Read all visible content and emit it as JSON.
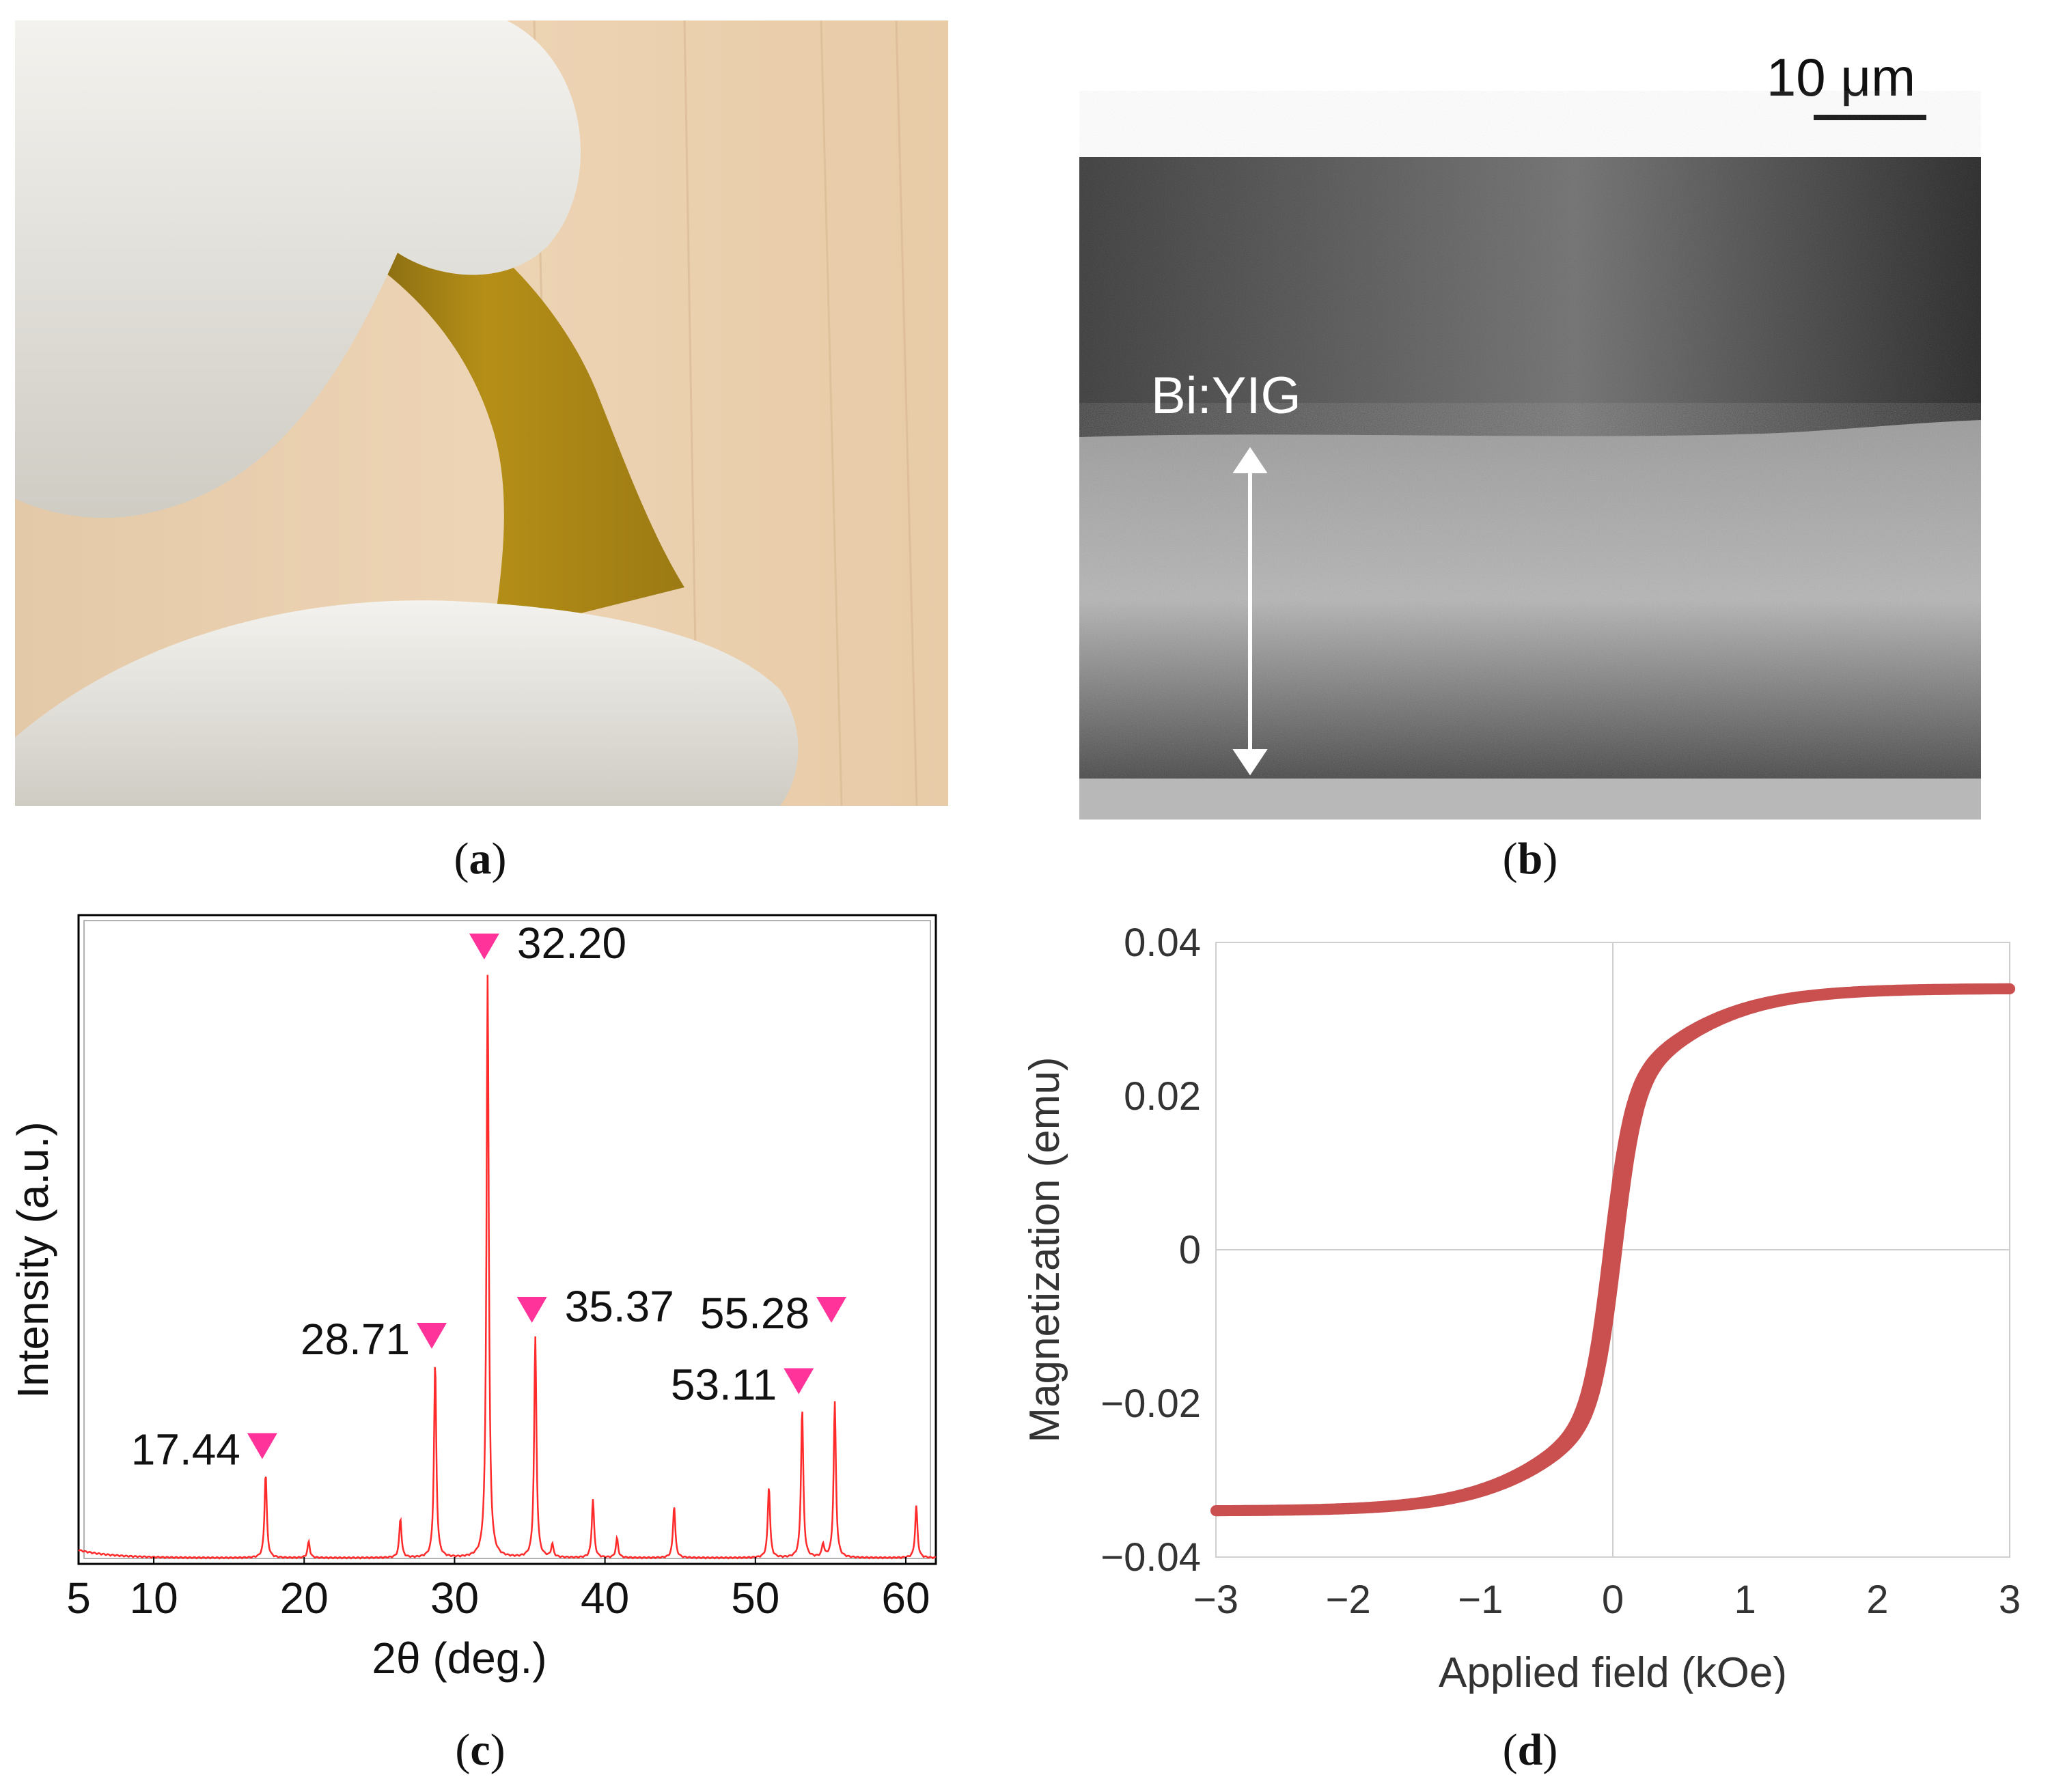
{
  "panels": {
    "a": {
      "label": "a"
    },
    "b": {
      "label": "b",
      "overlay_label": "Bi:YIG",
      "scale_bar": "10 μm"
    },
    "c": {
      "label": "c"
    },
    "d": {
      "label": "d"
    }
  },
  "colors": {
    "xrd": "#ff2a2a",
    "marker": "#ff3399",
    "hysteresis": "#c9504f"
  },
  "chart_data": [
    {
      "id": "xrd",
      "type": "line",
      "xlabel": "2θ  (deg.)",
      "ylabel": "Intensity  (a.u.)",
      "xlim": [
        5,
        62
      ],
      "ylim": [
        0,
        1.0
      ],
      "xticks": [
        5,
        10,
        20,
        30,
        40,
        50,
        60
      ],
      "peaks": [
        {
          "x": 17.44,
          "y": 0.13
        },
        {
          "x": 20.3,
          "y": 0.025
        },
        {
          "x": 26.4,
          "y": 0.06
        },
        {
          "x": 28.71,
          "y": 0.3
        },
        {
          "x": 32.2,
          "y": 0.9
        },
        {
          "x": 35.37,
          "y": 0.34
        },
        {
          "x": 36.5,
          "y": 0.02
        },
        {
          "x": 39.2,
          "y": 0.09
        },
        {
          "x": 40.8,
          "y": 0.03
        },
        {
          "x": 44.6,
          "y": 0.08
        },
        {
          "x": 50.9,
          "y": 0.11
        },
        {
          "x": 53.11,
          "y": 0.23
        },
        {
          "x": 54.5,
          "y": 0.02
        },
        {
          "x": 55.28,
          "y": 0.24
        },
        {
          "x": 60.7,
          "y": 0.08
        }
      ],
      "annotations": [
        {
          "text": "17.44",
          "x": 17.44,
          "y": 0.13,
          "side": "left"
        },
        {
          "text": "28.71",
          "x": 28.71,
          "y": 0.3,
          "side": "left"
        },
        {
          "text": "32.20",
          "x": 32.2,
          "y": 0.9,
          "side": "right"
        },
        {
          "text": "35.37",
          "x": 35.37,
          "y": 0.34,
          "side": "right"
        },
        {
          "text": "53.11",
          "x": 53.11,
          "y": 0.23,
          "side": "left"
        },
        {
          "text": "55.28",
          "x": 55.28,
          "y": 0.34,
          "side": "left"
        }
      ]
    },
    {
      "id": "hysteresis",
      "type": "scatter",
      "xlabel": "Applied field (kOe)",
      "ylabel": "Magnetization (emu)",
      "xlim": [
        -3,
        3
      ],
      "ylim": [
        -0.04,
        0.04
      ],
      "xticks": [
        -3,
        -2,
        -1,
        0,
        1,
        2,
        3
      ],
      "xtick_labels": [
        "−3",
        "−2",
        "−1",
        "0",
        "1",
        "2",
        "3"
      ],
      "yticks": [
        -0.04,
        -0.02,
        0,
        0.02,
        0.04
      ],
      "ytick_labels": [
        "−0.04",
        "−0.02",
        "0",
        "0.02",
        "0.04"
      ],
      "saturation": 0.034,
      "coercivity": 0.03,
      "grid": "zero-lines"
    }
  ]
}
